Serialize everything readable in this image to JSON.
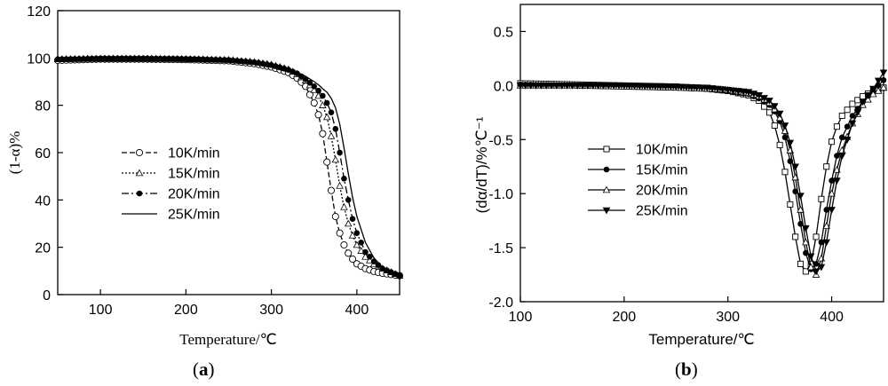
{
  "panels": {
    "a": {
      "label_open": "(",
      "label_letter": "a",
      "label_close": ")"
    },
    "b": {
      "label_open": "(",
      "label_letter": "b",
      "label_close": ")"
    }
  },
  "chart_data": [
    {
      "type": "line",
      "panel": "a",
      "xlabel": "Temperature/℃",
      "ylabel": "(1-α)%",
      "xlim": [
        50,
        450
      ],
      "ylim": [
        0,
        120
      ],
      "xticks": [
        100,
        200,
        300,
        400
      ],
      "yticks": [
        0,
        20,
        40,
        60,
        80,
        100,
        120
      ],
      "legend_position": "center-left",
      "series": [
        {
          "name": "10K/min",
          "color": "#000000",
          "dash": "6,3",
          "marker": "open-circle",
          "x": [
            50,
            100,
            150,
            200,
            250,
            280,
            300,
            320,
            330,
            340,
            350,
            355,
            360,
            365,
            370,
            375,
            380,
            385,
            390,
            395,
            400,
            410,
            420,
            430,
            440,
            450
          ],
          "y": [
            99,
            99.5,
            99.5,
            99.3,
            98.8,
            97.6,
            96.2,
            93.8,
            91.5,
            88,
            81,
            76,
            68,
            56,
            44,
            33,
            26,
            21,
            17.5,
            15,
            13,
            11,
            9.8,
            9,
            8.5,
            8
          ]
        },
        {
          "name": "15K/min",
          "color": "#000000",
          "dash": "2,2",
          "marker": "open-triangle",
          "x": [
            50,
            100,
            150,
            200,
            250,
            280,
            300,
            320,
            330,
            340,
            350,
            355,
            360,
            365,
            370,
            375,
            380,
            385,
            390,
            395,
            400,
            410,
            420,
            430,
            440,
            450
          ],
          "y": [
            99.5,
            99.8,
            99.8,
            99.6,
            99.2,
            98.3,
            97.2,
            95.2,
            93.2,
            90.5,
            86.5,
            84,
            80,
            75,
            67,
            57,
            46,
            37,
            30,
            25,
            21,
            16,
            13,
            11,
            9.5,
            8
          ]
        },
        {
          "name": "20K/min",
          "color": "#000000",
          "dash": "8,3,2,3",
          "marker": "filled-circle",
          "x": [
            50,
            100,
            150,
            200,
            250,
            280,
            300,
            320,
            330,
            340,
            350,
            355,
            360,
            365,
            370,
            375,
            380,
            385,
            390,
            395,
            400,
            410,
            420,
            430,
            440,
            450
          ],
          "y": [
            99.5,
            99.6,
            99.6,
            99.5,
            99.1,
            98.2,
            97,
            95,
            93.5,
            91,
            88,
            86.2,
            84,
            81,
            77,
            70,
            60,
            49,
            40,
            32,
            26,
            18,
            14,
            11,
            9.5,
            8
          ]
        },
        {
          "name": "25K/min",
          "color": "#000000",
          "dash": "",
          "marker": "none",
          "x": [
            50,
            100,
            150,
            200,
            250,
            280,
            300,
            320,
            330,
            340,
            350,
            355,
            360,
            365,
            370,
            375,
            380,
            385,
            390,
            395,
            400,
            410,
            420,
            430,
            440,
            450
          ],
          "y": [
            99.5,
            99.7,
            99.6,
            99.4,
            99,
            98.2,
            97.3,
            95.5,
            94,
            92.3,
            90,
            88.7,
            87,
            85.5,
            83,
            79,
            72,
            62,
            51,
            41,
            33,
            22,
            15.5,
            11.5,
            9,
            7
          ]
        }
      ]
    },
    {
      "type": "line",
      "panel": "b",
      "xlabel": "Temperature/℃",
      "ylabel": "(dα/dT)/%℃⁻¹",
      "xlim": [
        100,
        450
      ],
      "ylim": [
        -2.0,
        0.75
      ],
      "xticks": [
        100,
        200,
        300,
        400
      ],
      "yticks": [
        -2.0,
        -1.5,
        -1.0,
        -0.5,
        0.0,
        0.5
      ],
      "ytick_labels": [
        "-2.0",
        "-1.5",
        "-1.0",
        "-0.5",
        "0.0",
        "0.5"
      ],
      "legend_position": "center-left",
      "series": [
        {
          "name": "10K/min",
          "color": "#000000",
          "marker": "open-square",
          "x": [
            100,
            150,
            200,
            250,
            280,
            300,
            320,
            330,
            340,
            345,
            350,
            355,
            360,
            365,
            370,
            375,
            380,
            385,
            390,
            395,
            400,
            405,
            410,
            420,
            430,
            440,
            450
          ],
          "y": [
            0.02,
            0.01,
            0,
            -0.01,
            -0.03,
            -0.05,
            -0.09,
            -0.14,
            -0.25,
            -0.37,
            -0.55,
            -0.8,
            -1.1,
            -1.4,
            -1.65,
            -1.72,
            -1.65,
            -1.4,
            -1.05,
            -0.75,
            -0.52,
            -0.38,
            -0.28,
            -0.17,
            -0.1,
            -0.05,
            -0.02
          ]
        },
        {
          "name": "15K/min",
          "color": "#000000",
          "marker": "filled-circle",
          "x": [
            100,
            150,
            200,
            250,
            280,
            300,
            320,
            330,
            340,
            345,
            350,
            355,
            360,
            365,
            370,
            375,
            380,
            385,
            390,
            395,
            400,
            405,
            410,
            420,
            430,
            440,
            450
          ],
          "y": [
            0.01,
            0,
            -0.01,
            -0.02,
            -0.03,
            -0.05,
            -0.08,
            -0.12,
            -0.18,
            -0.24,
            -0.33,
            -0.48,
            -0.7,
            -0.98,
            -1.28,
            -1.55,
            -1.7,
            -1.65,
            -1.45,
            -1.15,
            -0.88,
            -0.65,
            -0.48,
            -0.28,
            -0.15,
            -0.05,
            0.05
          ]
        },
        {
          "name": "20K/min",
          "color": "#000000",
          "marker": "open-triangle",
          "x": [
            100,
            150,
            200,
            250,
            280,
            300,
            320,
            330,
            340,
            345,
            350,
            355,
            360,
            365,
            370,
            375,
            380,
            385,
            390,
            395,
            400,
            405,
            410,
            420,
            430,
            440,
            450
          ],
          "y": [
            0,
            0,
            -0.01,
            -0.02,
            -0.03,
            -0.04,
            -0.07,
            -0.1,
            -0.16,
            -0.22,
            -0.3,
            -0.42,
            -0.6,
            -0.85,
            -1.15,
            -1.45,
            -1.68,
            -1.75,
            -1.6,
            -1.3,
            -1.0,
            -0.78,
            -0.6,
            -0.35,
            -0.18,
            -0.08,
            -0.02
          ]
        },
        {
          "name": "25K/min",
          "color": "#000000",
          "marker": "filled-triangle-down",
          "x": [
            100,
            150,
            200,
            250,
            280,
            300,
            320,
            330,
            340,
            345,
            350,
            355,
            360,
            365,
            370,
            375,
            380,
            385,
            390,
            395,
            400,
            405,
            410,
            420,
            430,
            440,
            450
          ],
          "y": [
            0,
            0,
            0,
            -0.01,
            -0.02,
            -0.04,
            -0.06,
            -0.09,
            -0.14,
            -0.19,
            -0.26,
            -0.37,
            -0.53,
            -0.75,
            -1.02,
            -1.32,
            -1.58,
            -1.72,
            -1.68,
            -1.45,
            -1.15,
            -0.88,
            -0.65,
            -0.35,
            -0.15,
            -0.03,
            0.12
          ]
        }
      ]
    }
  ]
}
